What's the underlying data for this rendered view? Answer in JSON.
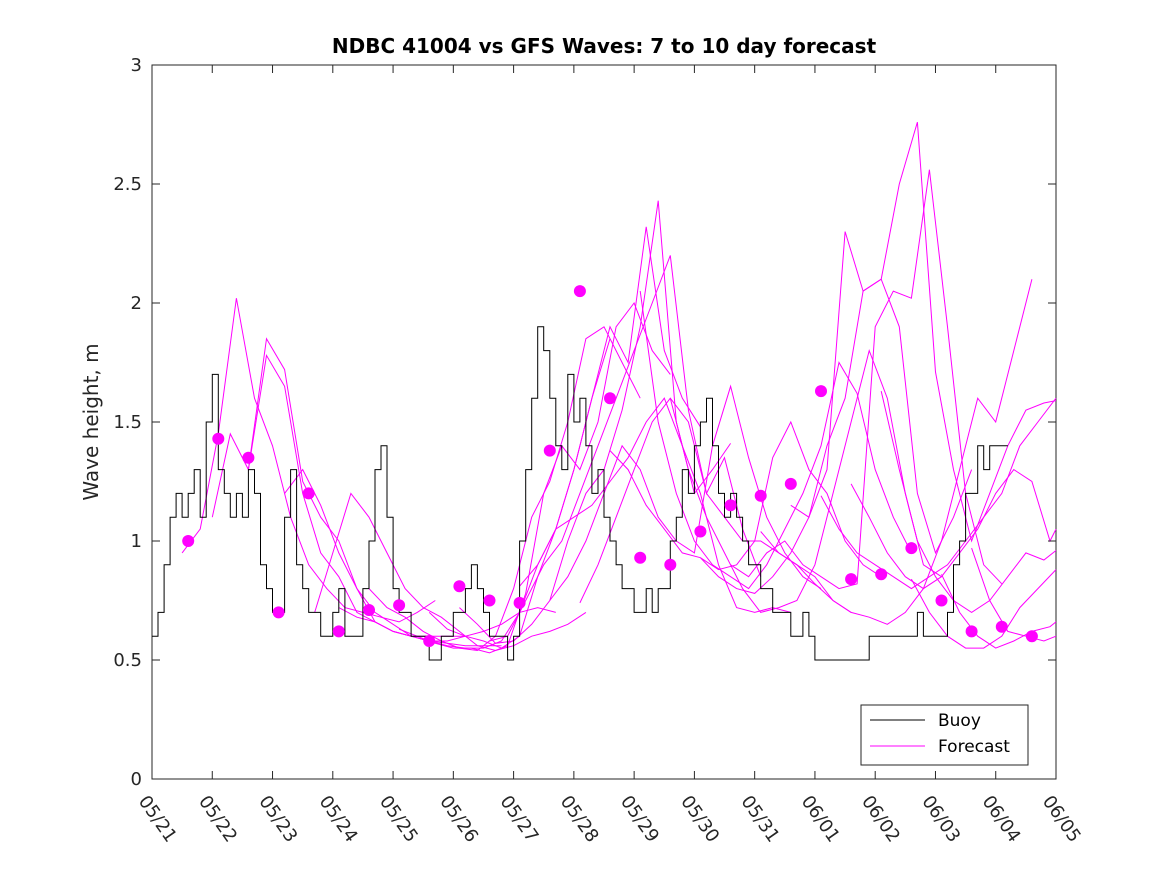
{
  "chart_data": {
    "type": "line",
    "title": "NDBC 41004 vs GFS Waves: 7 to 10 day forecast",
    "xlabel": "",
    "ylabel": "Wave height, m",
    "x_tick_labels": [
      "05/21",
      "05/22",
      "05/23",
      "05/24",
      "05/25",
      "05/26",
      "05/27",
      "05/28",
      "05/29",
      "05/30",
      "05/31",
      "06/01",
      "06/02",
      "06/03",
      "06/04",
      "06/05"
    ],
    "y_ticks": [
      0,
      0.5,
      1,
      1.5,
      2,
      2.5,
      3
    ],
    "y_tick_labels": [
      "0",
      "0.5",
      "1",
      "1.5",
      "2",
      "2.5",
      "3"
    ],
    "xlim_days": [
      0,
      15
    ],
    "ylim": [
      0,
      3
    ],
    "grid": false,
    "legend": {
      "position": "bottom-right",
      "entries": [
        "Buoy",
        "Forecast"
      ]
    },
    "colors": {
      "buoy": "#000000",
      "forecast": "#ff00ff",
      "marker": "#ff00ff",
      "axes": "#262626"
    },
    "buoy": {
      "name": "Buoy",
      "x": [
        0,
        0.1,
        0.2,
        0.3,
        0.4,
        0.5,
        0.6,
        0.7,
        0.8,
        0.9,
        1.0,
        1.1,
        1.2,
        1.3,
        1.4,
        1.5,
        1.6,
        1.7,
        1.8,
        1.9,
        2.0,
        2.1,
        2.2,
        2.3,
        2.4,
        2.5,
        2.6,
        2.7,
        2.8,
        2.9,
        3.0,
        3.1,
        3.2,
        3.3,
        3.4,
        3.5,
        3.6,
        3.7,
        3.8,
        3.9,
        4.0,
        4.1,
        4.2,
        4.3,
        4.4,
        4.5,
        4.6,
        4.7,
        4.8,
        4.9,
        5.0,
        5.1,
        5.2,
        5.3,
        5.4,
        5.5,
        5.6,
        5.7,
        5.8,
        5.9,
        6.0,
        6.1,
        6.2,
        6.3,
        6.4,
        6.5,
        6.6,
        6.7,
        6.8,
        6.9,
        7.0,
        7.1,
        7.2,
        7.3,
        7.4,
        7.5,
        7.6,
        7.7,
        7.8,
        7.9,
        8.0,
        8.1,
        8.2,
        8.3,
        8.4,
        8.5,
        8.6,
        8.7,
        8.8,
        8.9,
        9.0,
        9.1,
        9.2,
        9.3,
        9.4,
        9.5,
        9.6,
        9.7,
        9.8,
        9.9,
        10.0,
        10.1,
        10.2,
        10.3,
        10.4,
        10.5,
        10.6,
        10.7,
        10.8,
        10.9,
        11.0,
        11.1,
        11.2,
        11.3,
        11.4,
        11.5,
        11.6,
        11.7,
        11.8,
        11.9,
        12.0,
        12.1,
        12.2,
        12.3,
        12.4,
        12.5,
        12.6,
        12.7,
        12.8,
        12.9,
        13.0,
        13.1,
        13.2,
        13.3,
        13.4,
        13.5,
        13.6,
        13.7,
        13.8,
        13.9,
        14.0,
        14.1,
        14.2
      ],
      "y": [
        0.6,
        0.7,
        0.9,
        1.1,
        1.2,
        1.1,
        1.2,
        1.3,
        1.1,
        1.5,
        1.7,
        1.3,
        1.2,
        1.1,
        1.2,
        1.1,
        1.3,
        1.2,
        0.9,
        0.8,
        0.7,
        0.7,
        1.1,
        1.3,
        0.9,
        0.8,
        0.7,
        0.7,
        0.6,
        0.6,
        0.7,
        0.8,
        0.6,
        0.6,
        0.6,
        0.8,
        1.0,
        1.3,
        1.4,
        1.1,
        0.8,
        0.7,
        0.7,
        0.6,
        0.6,
        0.6,
        0.5,
        0.5,
        0.6,
        0.6,
        0.7,
        0.7,
        0.8,
        0.9,
        0.8,
        0.7,
        0.6,
        0.6,
        0.6,
        0.5,
        0.6,
        1.0,
        1.3,
        1.6,
        1.9,
        1.8,
        1.6,
        1.4,
        1.3,
        1.7,
        1.5,
        1.6,
        1.4,
        1.2,
        1.3,
        1.1,
        1.0,
        0.9,
        0.8,
        0.8,
        0.7,
        0.7,
        0.8,
        0.7,
        0.8,
        0.8,
        1.0,
        1.1,
        1.3,
        1.2,
        1.4,
        1.5,
        1.6,
        1.4,
        1.2,
        1.1,
        1.2,
        1.1,
        1.0,
        0.9,
        0.9,
        0.8,
        0.8,
        0.7,
        0.7,
        0.7,
        0.6,
        0.6,
        0.7,
        0.6,
        0.5,
        0.5,
        0.5,
        0.5,
        0.5,
        0.5,
        0.5,
        0.5,
        0.5,
        0.6,
        0.6,
        0.6,
        0.6,
        0.6,
        0.6,
        0.6,
        0.6,
        0.7,
        0.6,
        0.6,
        0.6,
        0.6,
        0.7,
        0.9,
        1.0,
        1.2,
        1.2,
        1.4,
        1.3,
        1.4,
        1.4,
        1.4,
        1.4
      ]
    },
    "series": [
      {
        "x": [
          0.5,
          0.8,
          1.1,
          1.4,
          1.7,
          2.0,
          2.3,
          2.6,
          2.9,
          3.2,
          3.5,
          3.8,
          4.1,
          4.4,
          4.7
        ],
        "y": [
          0.95,
          1.05,
          1.45,
          2.02,
          1.6,
          1.4,
          1.1,
          0.9,
          0.8,
          0.72,
          0.7,
          0.68,
          0.66,
          0.7,
          0.75
        ]
      },
      {
        "x": [
          1.0,
          1.3,
          1.6,
          1.9,
          2.2,
          2.5,
          2.8,
          3.1,
          3.4,
          3.7,
          4.0,
          4.3,
          4.6,
          4.9,
          5.2
        ],
        "y": [
          1.1,
          1.45,
          1.3,
          1.78,
          1.65,
          1.2,
          0.95,
          0.85,
          0.7,
          0.66,
          0.62,
          0.6,
          0.6,
          0.6,
          0.6
        ]
      },
      {
        "x": [
          1.6,
          1.9,
          2.2,
          2.5,
          2.8,
          3.1,
          3.4,
          3.7,
          4.0,
          4.3,
          4.6,
          4.9,
          5.2,
          5.5,
          5.8
        ],
        "y": [
          1.3,
          1.85,
          1.72,
          1.25,
          1.1,
          1.0,
          0.8,
          0.66,
          0.62,
          0.6,
          0.58,
          0.57,
          0.56,
          0.56,
          0.56
        ]
      },
      {
        "x": [
          2.2,
          2.5,
          2.8,
          3.1,
          3.4,
          3.7,
          4.0,
          4.3,
          4.6,
          4.9,
          5.2,
          5.5,
          5.8,
          6.1,
          6.4,
          6.7
        ],
        "y": [
          1.2,
          1.3,
          1.15,
          0.95,
          0.8,
          0.7,
          0.65,
          0.6,
          0.58,
          0.58,
          0.6,
          0.62,
          0.65,
          0.7,
          0.72,
          0.7
        ]
      },
      {
        "x": [
          2.7,
          3.0,
          3.3,
          3.6,
          3.9,
          4.2,
          4.5,
          4.8,
          5.1,
          5.4,
          5.7,
          6.0,
          6.3,
          6.6,
          6.9,
          7.2
        ],
        "y": [
          0.7,
          0.95,
          1.2,
          1.1,
          0.95,
          0.8,
          0.72,
          0.68,
          0.62,
          0.56,
          0.54,
          0.56,
          0.6,
          0.62,
          0.65,
          0.7
        ]
      },
      {
        "x": [
          3.1,
          3.4,
          3.7,
          4.0,
          4.3,
          4.6,
          4.9,
          5.2,
          5.5,
          5.8,
          6.1,
          6.4,
          6.7,
          7.0,
          7.3,
          7.6
        ],
        "y": [
          0.72,
          0.68,
          0.66,
          0.62,
          0.6,
          0.58,
          0.56,
          0.55,
          0.55,
          0.58,
          0.7,
          0.9,
          1.05,
          1.3,
          1.6,
          1.85
        ]
      },
      {
        "x": [
          3.6,
          3.9,
          4.2,
          4.5,
          4.8,
          5.1,
          5.4,
          5.7,
          6.0,
          6.3,
          6.6,
          6.9,
          7.2,
          7.5,
          7.8,
          8.1
        ],
        "y": [
          0.8,
          0.72,
          0.68,
          0.62,
          0.58,
          0.55,
          0.54,
          0.6,
          0.8,
          1.1,
          1.25,
          1.5,
          1.85,
          1.9,
          1.75,
          1.6
        ]
      },
      {
        "x": [
          4.1,
          4.4,
          4.7,
          5.0,
          5.3,
          5.6,
          5.9,
          6.2,
          6.5,
          6.8,
          7.1,
          7.4,
          7.7,
          8.0,
          8.3,
          8.6
        ],
        "y": [
          0.63,
          0.6,
          0.57,
          0.55,
          0.55,
          0.53,
          0.56,
          0.78,
          1.2,
          1.4,
          1.3,
          1.5,
          1.9,
          2.0,
          1.8,
          1.7
        ]
      },
      {
        "x": [
          4.6,
          4.9,
          5.2,
          5.5,
          5.8,
          6.1,
          6.4,
          6.7,
          7.0,
          7.3,
          7.6,
          7.9,
          8.2,
          8.5,
          8.8,
          9.1
        ],
        "y": [
          0.7,
          0.63,
          0.6,
          0.58,
          0.55,
          0.6,
          0.85,
          1.05,
          1.3,
          1.6,
          1.9,
          1.75,
          2.32,
          1.8,
          1.6,
          1.48
        ]
      },
      {
        "x": [
          5.1,
          5.4,
          5.7,
          6.0,
          6.3,
          6.6,
          6.9,
          7.2,
          7.5,
          7.8,
          8.1,
          8.4,
          8.7,
          9.0,
          9.3,
          9.6
        ],
        "y": [
          0.72,
          0.65,
          0.57,
          0.58,
          0.65,
          0.75,
          1.0,
          1.2,
          1.3,
          1.55,
          1.9,
          2.43,
          1.5,
          1.2,
          1.3,
          1.41
        ]
      },
      {
        "x": [
          5.6,
          5.9,
          6.2,
          6.5,
          6.8,
          7.1,
          7.4,
          7.7,
          8.0,
          8.3,
          8.6,
          8.9,
          9.2,
          9.5,
          9.8,
          10.1
        ],
        "y": [
          0.58,
          0.6,
          0.75,
          0.9,
          1.0,
          1.2,
          1.4,
          1.6,
          1.8,
          2.0,
          2.2,
          1.55,
          1.2,
          1.35,
          1.05,
          0.85
        ]
      },
      {
        "x": [
          6.1,
          6.4,
          6.7,
          7.0,
          7.3,
          7.6,
          7.9,
          8.2,
          8.5,
          8.8,
          9.1,
          9.4,
          9.7,
          10.0,
          10.3,
          10.6
        ],
        "y": [
          0.81,
          0.9,
          1.05,
          1.1,
          1.15,
          1.25,
          1.35,
          1.5,
          1.6,
          1.4,
          1.2,
          0.9,
          0.72,
          0.7,
          0.72,
          0.7
        ]
      },
      {
        "x": [
          6.6,
          6.9,
          7.2,
          7.5,
          7.8,
          8.1,
          8.4,
          8.7,
          9.0,
          9.3,
          9.6,
          9.9,
          10.2,
          10.5,
          10.8,
          11.1
        ],
        "y": [
          0.75,
          0.85,
          1.0,
          1.2,
          1.4,
          1.3,
          1.1,
          1.0,
          0.95,
          1.4,
          1.65,
          1.35,
          1.1,
          0.95,
          0.85,
          0.8
        ]
      },
      {
        "x": [
          7.1,
          7.4,
          7.7,
          8.0,
          8.3,
          8.6,
          8.9,
          9.2,
          9.5,
          9.8,
          10.1,
          10.4,
          10.7,
          11.0,
          11.3,
          11.6
        ],
        "y": [
          0.74,
          0.9,
          1.1,
          1.3,
          1.5,
          1.6,
          1.5,
          1.2,
          1.1,
          1.0,
          1.0,
          0.95,
          0.9,
          0.85,
          0.75,
          0.7
        ]
      },
      {
        "x": [
          7.6,
          7.9,
          8.2,
          8.5,
          8.8,
          9.1,
          9.4,
          9.7,
          10.0,
          10.3,
          10.6,
          10.9,
          11.2,
          11.5,
          11.8,
          12.1
        ],
        "y": [
          1.38,
          1.3,
          1.15,
          1.05,
          0.95,
          0.93,
          0.88,
          0.9,
          1.0,
          1.35,
          1.5,
          1.3,
          1.2,
          1.0,
          0.9,
          0.85
        ]
      },
      {
        "x": [
          8.1,
          8.4,
          8.7,
          9.0,
          9.3,
          9.6,
          9.9,
          10.2,
          10.5,
          10.8,
          11.1,
          11.4,
          11.7,
          12.0,
          12.3,
          12.6
        ],
        "y": [
          2.05,
          1.5,
          1.2,
          1.0,
          0.9,
          0.85,
          0.8,
          0.9,
          1.05,
          1.2,
          1.4,
          1.75,
          1.62,
          1.3,
          1.1,
          0.95
        ]
      },
      {
        "x": [
          8.6,
          8.9,
          9.2,
          9.5,
          9.8,
          10.1,
          10.4,
          10.7,
          11.0,
          11.3,
          11.6,
          11.9,
          12.2,
          12.5,
          12.8,
          13.1
        ],
        "y": [
          1.6,
          1.3,
          1.1,
          0.95,
          0.8,
          0.7,
          0.72,
          0.75,
          0.9,
          1.2,
          1.5,
          1.8,
          1.6,
          1.2,
          0.9,
          0.85
        ]
      },
      {
        "x": [
          9.1,
          9.4,
          9.7,
          10.0,
          10.3,
          10.6,
          10.9,
          11.2,
          11.5,
          11.8,
          12.1,
          12.4,
          12.7,
          13.0,
          13.3,
          13.6
        ],
        "y": [
          0.93,
          0.85,
          0.8,
          0.78,
          0.85,
          0.95,
          1.1,
          1.4,
          1.6,
          2.05,
          2.1,
          1.9,
          1.2,
          0.95,
          1.1,
          1.3
        ]
      },
      {
        "x": [
          9.6,
          9.9,
          10.2,
          10.5,
          10.8,
          11.1,
          11.4,
          11.7,
          12.0,
          12.3,
          12.6,
          12.9,
          13.2,
          13.5,
          13.8,
          14.1
        ],
        "y": [
          0.9,
          0.85,
          0.95,
          1.0,
          0.9,
          0.85,
          0.8,
          0.82,
          1.9,
          2.05,
          2.02,
          2.56,
          1.9,
          1.2,
          0.9,
          0.82
        ]
      },
      {
        "x": [
          10.1,
          10.4,
          10.7,
          11.0,
          11.3,
          11.6,
          11.9,
          12.2,
          12.5,
          12.8,
          13.1,
          13.4,
          13.7,
          14.0,
          14.3,
          14.6
        ],
        "y": [
          1.04,
          0.95,
          0.9,
          0.82,
          0.75,
          0.7,
          0.68,
          0.65,
          0.7,
          0.8,
          1.0,
          1.3,
          1.6,
          1.5,
          1.8,
          2.1
        ]
      },
      {
        "x": [
          10.6,
          10.9,
          11.2,
          11.5,
          11.8,
          12.1,
          12.4,
          12.7,
          13.0,
          13.3,
          13.6,
          13.9,
          14.2,
          14.5,
          14.8,
          15.0
        ],
        "y": [
          1.15,
          1.1,
          1.3,
          2.3,
          2.05,
          2.1,
          2.5,
          2.76,
          1.71,
          1.3,
          1.0,
          1.2,
          1.4,
          1.55,
          1.58,
          1.59
        ]
      },
      {
        "x": [
          11.1,
          11.4,
          11.7,
          12.0,
          12.3,
          12.6,
          12.9,
          13.2,
          13.5,
          13.8,
          14.1,
          14.4,
          14.7,
          15.0
        ],
        "y": [
          1.19,
          1.05,
          0.95,
          0.9,
          0.85,
          0.8,
          0.85,
          0.9,
          1.0,
          1.1,
          1.2,
          1.4,
          1.5,
          1.6
        ]
      },
      {
        "x": [
          11.6,
          11.9,
          12.2,
          12.5,
          12.8,
          13.1,
          13.4,
          13.7,
          14.0,
          14.3,
          14.6,
          14.9,
          15.0
        ],
        "y": [
          1.24,
          1.1,
          0.95,
          0.85,
          0.8,
          0.85,
          0.95,
          1.05,
          1.2,
          1.3,
          1.25,
          1.0,
          1.05
        ]
      },
      {
        "x": [
          12.1,
          12.4,
          12.7,
          13.0,
          13.3,
          13.6,
          13.9,
          14.2,
          14.5,
          14.8,
          15.0
        ],
        "y": [
          1.63,
          1.3,
          1.0,
          0.85,
          0.75,
          0.7,
          0.75,
          0.85,
          0.95,
          0.92,
          0.96
        ]
      },
      {
        "x": [
          12.6,
          12.9,
          13.2,
          13.5,
          13.8,
          14.1,
          14.4,
          14.7,
          15.0
        ],
        "y": [
          0.84,
          0.7,
          0.6,
          0.55,
          0.55,
          0.6,
          0.72,
          0.8,
          0.88
        ]
      },
      {
        "x": [
          13.1,
          13.4,
          13.7,
          14.0,
          14.3,
          14.6,
          14.9,
          15.0
        ],
        "y": [
          0.86,
          0.7,
          0.6,
          0.55,
          0.58,
          0.62,
          0.64,
          0.66
        ]
      },
      {
        "x": [
          13.6,
          13.9,
          14.2,
          14.5,
          14.8,
          15.0
        ],
        "y": [
          0.97,
          0.75,
          0.62,
          0.6,
          0.58,
          0.6
        ]
      }
    ],
    "markers": {
      "x": [
        0.6,
        1.1,
        1.6,
        2.1,
        2.6,
        3.1,
        3.6,
        4.1,
        4.6,
        5.1,
        5.6,
        6.1,
        6.6,
        7.1,
        7.6,
        8.1,
        8.6,
        9.1,
        9.6,
        10.1,
        10.6,
        11.1,
        11.6,
        12.1,
        12.6,
        13.1,
        13.6,
        14.1,
        14.6
      ],
      "y": [
        1.0,
        1.43,
        1.35,
        0.7,
        1.2,
        0.62,
        0.71,
        0.73,
        0.58,
        0.81,
        0.75,
        0.74,
        1.38,
        2.05,
        1.6,
        0.93,
        0.9,
        1.04,
        1.15,
        1.19,
        1.24,
        1.63,
        0.84,
        0.86,
        0.97,
        0.75,
        0.62,
        0.64,
        0.6
      ]
    }
  }
}
